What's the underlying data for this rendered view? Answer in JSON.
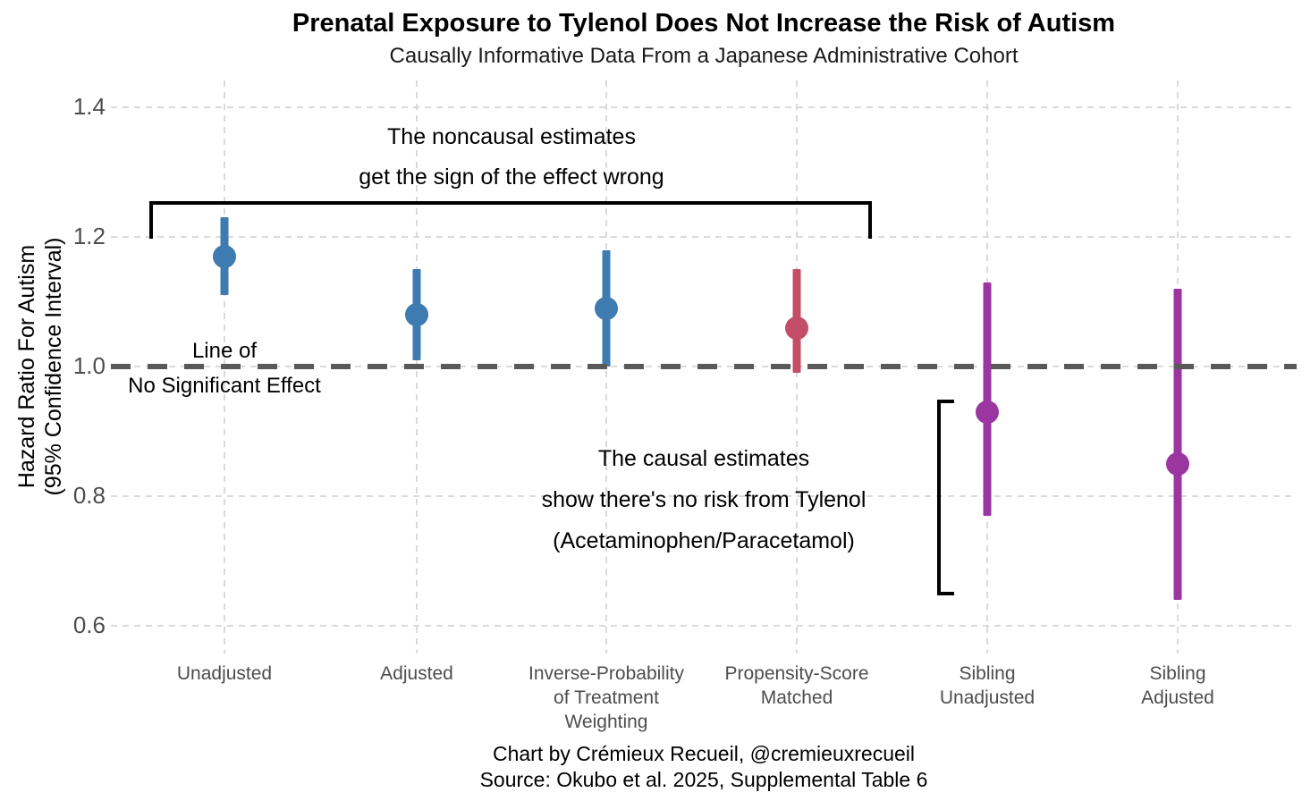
{
  "title": "Prenatal Exposure to Tylenol Does Not Increase the Risk of Autism",
  "subtitle": "Causally Informative Data From a Japanese Administrative Cohort",
  "y_axis": {
    "label": "Hazard Ratio For Autism\n(95% Confidence Interval)",
    "ticks": [
      1.4,
      1.2,
      1.0,
      0.8,
      0.6
    ]
  },
  "reference_line": {
    "value": 1.0,
    "label": "Line of\nNo Significant Effect"
  },
  "annotations": {
    "noncausal": "The noncausal estimates\nget the sign of the effect wrong",
    "causal": "The causal estimates\nshow there's no risk from Tylenol\n(Acetaminophen/Paracetamol)"
  },
  "chart_data": {
    "type": "scatter",
    "subtype": "point-range forest plot (hazard ratios with 95% CI)",
    "title": "Prenatal Exposure to Tylenol Does Not Increase the Risk of Autism",
    "xlabel": "",
    "ylabel": "Hazard Ratio For Autism (95% Confidence Interval)",
    "ylim": [
      0.55,
      1.45
    ],
    "yticks": [
      0.6,
      0.8,
      1.0,
      1.2,
      1.4
    ],
    "reference_value": 1.0,
    "grid": "light dashed horizontal and vertical gridlines",
    "legend": "none",
    "categories": [
      "Unadjusted",
      "Adjusted",
      "Inverse-Probability\nof Treatment\nWeighting",
      "Propensity-Score\nMatched",
      "Sibling\nUnadjusted",
      "Sibling\nAdjusted"
    ],
    "points": [
      {
        "label": "Unadjusted",
        "hazard_ratio": 1.17,
        "ci_low": 1.11,
        "ci_high": 1.23,
        "group": "noncausal",
        "color": "#3D7BB0"
      },
      {
        "label": "Adjusted",
        "hazard_ratio": 1.08,
        "ci_low": 1.01,
        "ci_high": 1.15,
        "group": "noncausal",
        "color": "#3D7BB0"
      },
      {
        "label": "Inverse-Probability\nof Treatment\nWeighting",
        "hazard_ratio": 1.09,
        "ci_low": 1.0,
        "ci_high": 1.18,
        "group": "noncausal",
        "color": "#3D7BB0"
      },
      {
        "label": "Propensity-Score\nMatched",
        "hazard_ratio": 1.06,
        "ci_low": 0.99,
        "ci_high": 1.15,
        "group": "noncausal",
        "color": "#C44E68"
      },
      {
        "label": "Sibling\nUnadjusted",
        "hazard_ratio": 0.93,
        "ci_low": 0.77,
        "ci_high": 1.13,
        "group": "causal",
        "color": "#9B35A0"
      },
      {
        "label": "Sibling\nAdjusted",
        "hazard_ratio": 0.85,
        "ci_low": 0.64,
        "ci_high": 1.12,
        "group": "causal",
        "color": "#9B35A0"
      }
    ]
  },
  "colors": {
    "noncausal_estimate": "#3D7BB0",
    "matched_estimate": "#C44E68",
    "causal_estimate": "#9B35A0",
    "reference_line": "#595959",
    "gridline": "#DADADA",
    "axis_text": "#4D4D4D",
    "annotation": "#000000"
  },
  "footer": {
    "credit": "Chart by Crémieux Recueil, @cremieuxrecueil",
    "source": "Source: Okubo et al. 2025, Supplemental Table 6"
  }
}
